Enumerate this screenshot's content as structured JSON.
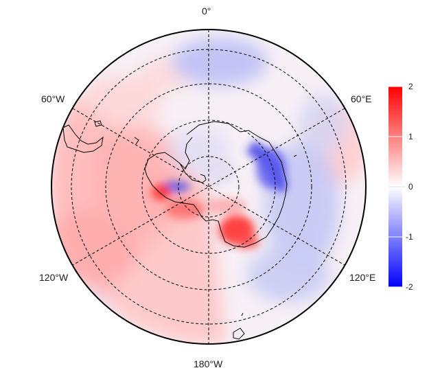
{
  "map": {
    "projection": "south-polar-stereographic",
    "longitude_labels": {
      "top": "0°",
      "upper_left": "60°W",
      "upper_right": "60°E",
      "lower_left": "120°W",
      "lower_right": "120°E",
      "bottom": "180°W"
    },
    "grid": "dashed graticule every 60° longitude and concentric latitude circles",
    "colors": {
      "positive": "#ff0000",
      "neutral": "#ffffff",
      "negative": "#0000ff",
      "coastline": "#000000"
    }
  },
  "colorbar": {
    "range": [
      -2,
      2
    ],
    "ticks": [
      "2",
      "1",
      "0",
      "-1",
      "-2"
    ]
  }
}
